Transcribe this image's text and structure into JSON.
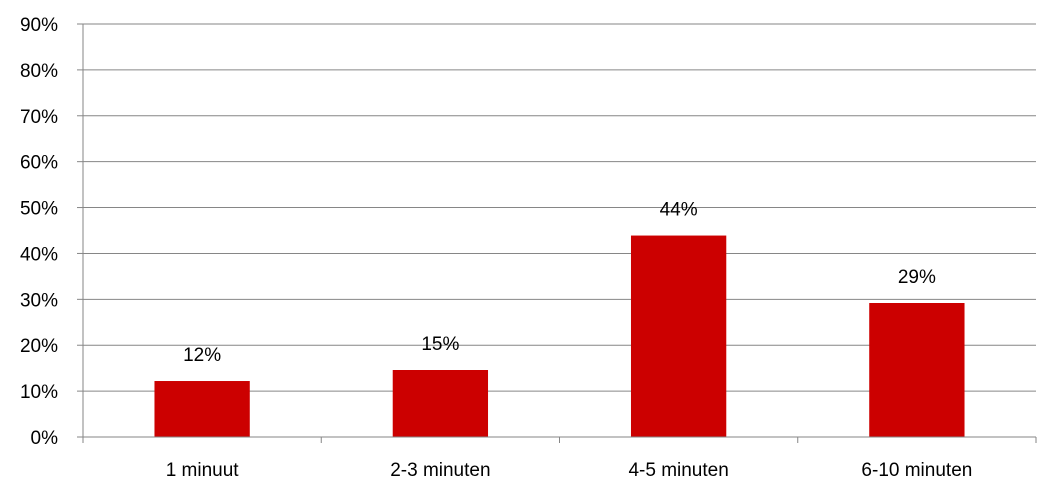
{
  "chart_data": {
    "type": "bar",
    "categories": [
      "1 minuut",
      "2-3 minuten",
      "4-5 minuten",
      "6-10 minuten"
    ],
    "values": [
      12.2,
      14.6,
      43.9,
      29.2
    ],
    "data_labels": [
      "12%",
      "15%",
      "44%",
      "29%"
    ],
    "title": "",
    "xlabel": "",
    "ylabel": "",
    "ylim": [
      0,
      90
    ],
    "yticks": [
      0,
      10,
      20,
      30,
      40,
      50,
      60,
      70,
      80,
      90
    ],
    "ytick_labels": [
      "0%",
      "10%",
      "20%",
      "30%",
      "40%",
      "50%",
      "60%",
      "70%",
      "80%",
      "90%"
    ],
    "grid": true,
    "legend": "none",
    "colors": {
      "bar": "#cc0000",
      "grid": "#868686",
      "axis": "#868686"
    }
  }
}
